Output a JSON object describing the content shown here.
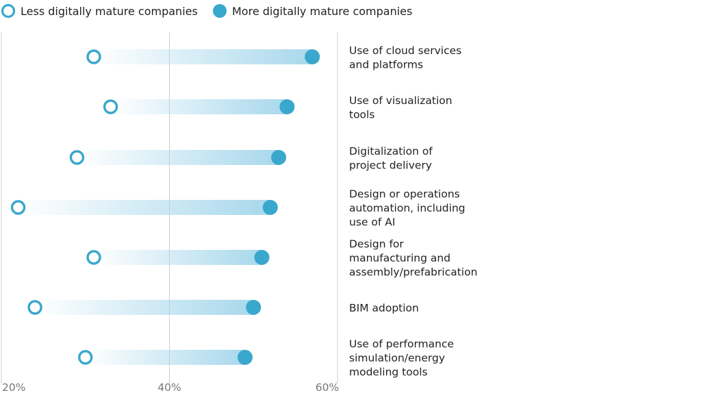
{
  "chart_data": {
    "type": "dumbbell",
    "title": "",
    "xlabel": "",
    "ylabel": "",
    "xlim": [
      20,
      60
    ],
    "x_ticks": [
      "20%",
      "40%",
      "60%"
    ],
    "x_tick_values": [
      20,
      40,
      60
    ],
    "legend_position": "top-left",
    "colors": {
      "less": "#3aa7cc",
      "more": "#3aa7cc",
      "bar": "#a8d8ec",
      "gridline": "#cccccc"
    },
    "series": [
      {
        "name": "Less digitally mature companies",
        "marker": "open-circle"
      },
      {
        "name": "More digitally mature companies",
        "marker": "filled-circle"
      }
    ],
    "categories": [
      {
        "label_lines": [
          "Use of cloud services",
          "and platforms"
        ],
        "less": 31,
        "more": 57
      },
      {
        "label_lines": [
          "Use of visualization",
          "tools"
        ],
        "less": 33,
        "more": 54
      },
      {
        "label_lines": [
          "Digitalization of",
          "project delivery"
        ],
        "less": 29,
        "more": 53
      },
      {
        "label_lines": [
          "Design or operations",
          "automation, including",
          "use of AI"
        ],
        "less": 22,
        "more": 52
      },
      {
        "label_lines": [
          "Design for",
          "manufacturing and",
          "assembly/prefabrication"
        ],
        "less": 31,
        "more": 51
      },
      {
        "label_lines": [
          "BIM adoption"
        ],
        "less": 24,
        "more": 50
      },
      {
        "label_lines": [
          "Use of performance",
          "simulation/energy",
          "modeling tools"
        ],
        "less": 30,
        "more": 49
      }
    ]
  }
}
